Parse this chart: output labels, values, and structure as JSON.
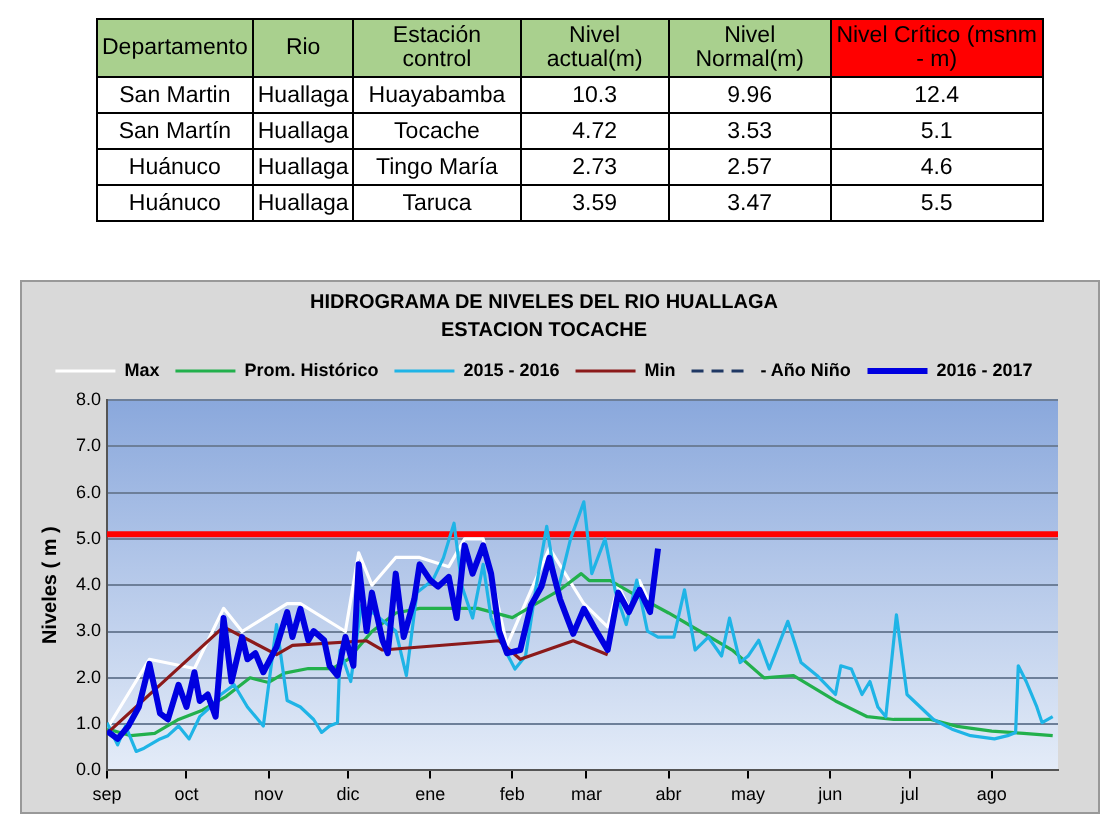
{
  "chart_data": [
    {
      "type": "other",
      "categories": [
        "Departamento",
        "Rio",
        "Estación control",
        "Nivel actual(m)",
        "Nivel Normal(m)",
        "Nivel Crítico (msnm - m)"
      ],
      "colors": [
        "#a9d08e",
        "#a9d08e",
        "#a9d08e",
        "#a9d08e",
        "#a9d08e",
        "#ff0000"
      ],
      "annotations": [
        "San Martin",
        "Huallaga",
        "Huayabamba",
        "10.3",
        "9.96",
        "12.4",
        "San Martín",
        "Huallaga",
        "Tocache",
        "4.72",
        "3.53",
        "5.1",
        "Huánuco",
        "Huallaga",
        "Tingo María",
        "2.73",
        "2.57",
        "4.6",
        "Huánuco",
        "Huallaga",
        "Taruca",
        "3.59",
        "3.47",
        "5.5"
      ]
    },
    {
      "type": "line",
      "title": "HIDROGRAMA DE NIVELES DEL RIO HUALLAGA",
      "subtitle": "ESTACION TOCACHE",
      "ylabel": "Niveles ( m )",
      "xlim": [
        "2016-09-01",
        "2017-08-26"
      ],
      "xticks": [
        {
          "value": "2016-09-01",
          "label": "sep"
        },
        {
          "value": "2016-10-01",
          "label": "oct"
        },
        {
          "value": "2016-11-01",
          "label": "nov"
        },
        {
          "value": "2016-12-01",
          "label": "dic"
        },
        {
          "value": "2017-01-01",
          "label": "ene"
        },
        {
          "value": "2017-02-01",
          "label": "feb"
        },
        {
          "value": "2017-03-01",
          "label": "mar"
        },
        {
          "value": "2017-04-01",
          "label": "abr"
        },
        {
          "value": "2017-05-01",
          "label": "may"
        },
        {
          "value": "2017-06-01",
          "label": "jun"
        },
        {
          "value": "2017-07-01",
          "label": "jul"
        },
        {
          "value": "2017-08-01",
          "label": "ago"
        }
      ],
      "ylim": [
        0,
        8
      ],
      "yticks": [
        {
          "value": 0,
          "label": "0.0"
        },
        {
          "value": 1,
          "label": "1.0"
        },
        {
          "value": 2,
          "label": "2.0"
        },
        {
          "value": 3,
          "label": "3.0"
        },
        {
          "value": 4,
          "label": "4.0"
        },
        {
          "value": 5,
          "label": "5.0"
        },
        {
          "value": 6,
          "label": "6.0"
        },
        {
          "value": 7,
          "label": "7.0"
        },
        {
          "value": 8,
          "label": "8.0"
        }
      ],
      "grid": "y",
      "legend": "top",
      "marker": "none",
      "ref_lines": [
        {
          "axis": "y",
          "value": 5.1,
          "color": "#ff0000"
        }
      ],
      "series": [
        {
          "name": "Max",
          "color": "#ffffff",
          "x": [
            "2016-09-01",
            "2016-09-17",
            "2016-10-04",
            "2016-10-15",
            "2016-10-22",
            "2016-11-08",
            "2016-11-13",
            "2016-11-30",
            "2016-12-05",
            "2016-12-10",
            "2016-12-19",
            "2016-12-28",
            "2017-01-08",
            "2017-01-14",
            "2017-01-21",
            "2017-01-30",
            "2017-02-15",
            "2017-02-28",
            "2017-03-09",
            "2017-03-13",
            "2017-03-17",
            "2017-03-21",
            "2017-03-25"
          ],
          "values": [
            0.9,
            2.4,
            2.2,
            3.5,
            3.0,
            3.6,
            3.6,
            3.0,
            4.7,
            4.0,
            4.6,
            4.6,
            4.4,
            5.0,
            5.0,
            2.7,
            4.8,
            3.6,
            3.1,
            4.0,
            3.5,
            4.1,
            3.6
          ]
        },
        {
          "name": "Prom. Histórico",
          "color": "#22b04c",
          "x": [
            "2016-09-01",
            "2016-09-10",
            "2016-09-19",
            "2016-09-28",
            "2016-10-07",
            "2016-10-16",
            "2016-10-25",
            "2016-11-01",
            "2016-11-07",
            "2016-11-16",
            "2016-11-25",
            "2016-12-01",
            "2016-12-10",
            "2016-12-19",
            "2016-12-28",
            "2017-01-07",
            "2017-01-19",
            "2017-02-01",
            "2017-02-10",
            "2017-02-19",
            "2017-02-27",
            "2017-03-02",
            "2017-03-10",
            "2017-03-19",
            "2017-04-01",
            "2017-04-13",
            "2017-04-25",
            "2017-05-07",
            "2017-05-18",
            "2017-06-03",
            "2017-06-15",
            "2017-06-25",
            "2017-07-09",
            "2017-07-19",
            "2017-08-01",
            "2017-08-13",
            "2017-08-24"
          ],
          "values": [
            0.9,
            0.75,
            0.8,
            1.1,
            1.3,
            1.6,
            2.0,
            1.9,
            2.1,
            2.2,
            2.2,
            2.4,
            3.0,
            3.4,
            3.5,
            3.5,
            3.5,
            3.3,
            3.6,
            3.9,
            4.25,
            4.1,
            4.1,
            3.8,
            3.4,
            3.0,
            2.6,
            2.0,
            2.05,
            1.5,
            1.16,
            1.1,
            1.1,
            0.95,
            0.85,
            0.8,
            0.75
          ]
        },
        {
          "name": "2015 - 2016",
          "color": "#1fb4e6",
          "x": [
            "2016-09-01",
            "2016-09-05",
            "2016-09-08",
            "2016-09-12",
            "2016-09-15",
            "2016-09-21",
            "2016-09-24",
            "2016-09-28",
            "2016-10-02",
            "2016-10-06",
            "2016-10-10",
            "2016-10-14",
            "2016-10-19",
            "2016-10-24",
            "2016-10-30",
            "2016-11-04",
            "2016-11-08",
            "2016-11-13",
            "2016-11-18",
            "2016-11-21",
            "2016-11-24",
            "2016-11-27",
            "2016-11-28",
            "2016-12-02",
            "2016-12-06",
            "2016-12-10",
            "2016-12-15",
            "2016-12-19",
            "2016-12-23",
            "2016-12-27",
            "2017-01-02",
            "2017-01-06",
            "2017-01-10",
            "2017-01-13",
            "2017-01-17",
            "2017-01-21",
            "2017-01-24",
            "2017-01-28",
            "2017-02-02",
            "2017-02-06",
            "2017-02-10",
            "2017-02-14",
            "2017-02-18",
            "2017-02-23",
            "2017-02-28",
            "2017-03-03",
            "2017-03-08",
            "2017-03-12",
            "2017-03-16",
            "2017-03-20",
            "2017-03-24",
            "2017-03-28",
            "2017-04-03",
            "2017-04-07",
            "2017-04-11",
            "2017-04-16",
            "2017-04-21",
            "2017-04-24",
            "2017-04-28",
            "2017-05-01",
            "2017-05-05",
            "2017-05-09",
            "2017-05-16",
            "2017-05-21",
            "2017-05-27",
            "2017-06-03",
            "2017-06-05",
            "2017-06-09",
            "2017-06-13",
            "2017-06-16",
            "2017-06-19",
            "2017-06-22",
            "2017-06-26",
            "2017-06-30",
            "2017-07-05",
            "2017-07-10",
            "2017-07-17",
            "2017-07-24",
            "2017-08-02",
            "2017-08-07",
            "2017-08-10",
            "2017-08-11",
            "2017-08-14",
            "2017-08-18",
            "2017-08-20",
            "2017-08-24"
          ],
          "values": [
            1.03,
            0.55,
            0.96,
            0.41,
            0.48,
            0.68,
            0.75,
            0.96,
            0.68,
            1.16,
            1.37,
            1.64,
            1.85,
            1.37,
            0.96,
            3.15,
            1.51,
            1.37,
            1.1,
            0.82,
            0.96,
            1.03,
            2.6,
            1.92,
            3.56,
            3.42,
            null,
            3.01,
            2.05,
            3.84,
            4.11,
            4.59,
            5.34,
            3.97,
            3.29,
            4.45,
            3.29,
            2.74,
            2.19,
            2.47,
            3.97,
            5.27,
            3.84,
            5.0,
            5.8,
            4.25,
            5.0,
            3.84,
            3.15,
            4.11,
            3.01,
            2.88,
            2.88,
            3.9,
            2.6,
            2.88,
            2.47,
            3.29,
            2.33,
            2.47,
            2.81,
            2.19,
            3.22,
            2.33,
            2.05,
            1.64,
            2.26,
            2.19,
            1.64,
            1.92,
            1.37,
            1.16,
            3.36,
            1.64,
            1.37,
            1.1,
            0.89,
            0.75,
            0.68,
            0.75,
            0.82,
            2.26,
            1.92,
            1.37,
            1.03,
            1.16
          ]
        },
        {
          "name": "Min",
          "color": "#8b1a1a",
          "x": [
            "2016-09-01",
            "2016-10-15",
            "2016-11-04",
            "2016-11-10",
            "2016-12-08",
            "2016-12-14",
            "2017-01-27",
            "2017-02-04",
            "2017-02-24",
            "2017-03-09"
          ],
          "values": [
            0.8,
            3.1,
            2.5,
            2.7,
            2.8,
            2.6,
            2.8,
            2.4,
            2.8,
            2.5
          ]
        },
        {
          "name": "- Año Niño",
          "color": "#1f3864",
          "line_style": "dashed"
        },
        {
          "name": "2016 - 2017",
          "color": "#0000e0",
          "x": [
            "2016-09-01",
            "2016-09-05",
            "2016-09-09",
            "2016-09-13",
            "2016-09-17",
            "2016-09-21",
            "2016-09-24",
            "2016-09-28",
            "2016-10-01",
            "2016-10-04",
            "2016-10-06",
            "2016-10-09",
            "2016-10-12",
            "2016-10-15",
            "2016-10-18",
            "2016-10-22",
            "2016-10-24",
            "2016-10-27",
            "2016-10-30",
            "2016-11-04",
            "2016-11-08",
            "2016-11-10",
            "2016-11-13",
            "2016-11-16",
            "2016-11-18",
            "2016-11-22",
            "2016-11-24",
            "2016-11-27",
            "2016-11-30",
            "2016-12-03",
            "2016-12-05",
            "2016-12-08",
            "2016-12-10",
            "2016-12-14",
            "2016-12-16",
            "2016-12-19",
            "2016-12-22",
            "2016-12-26",
            "2016-12-28",
            "2017-01-01",
            "2017-01-04",
            "2017-01-08",
            "2017-01-11",
            "2017-01-14",
            "2017-01-17",
            "2017-01-21",
            "2017-01-24",
            "2017-01-27",
            "2017-01-30",
            "2017-02-04",
            "2017-02-08",
            "2017-02-12",
            "2017-02-15",
            "2017-02-19",
            "2017-02-24",
            "2017-02-28",
            "2017-03-04",
            "2017-03-09",
            "2017-03-13",
            "2017-03-17",
            "2017-03-21",
            "2017-03-25",
            "2017-03-28"
          ],
          "values": [
            0.85,
            0.68,
            0.95,
            1.37,
            2.3,
            1.23,
            1.1,
            1.85,
            1.37,
            2.12,
            1.5,
            1.64,
            1.16,
            3.29,
            1.92,
            2.88,
            2.4,
            2.53,
            2.12,
            2.67,
            3.42,
            2.88,
            3.49,
            2.81,
            3.01,
            2.81,
            2.26,
            2.05,
            2.88,
            2.26,
            4.45,
            3.01,
            3.84,
            2.81,
            2.53,
            4.25,
            2.88,
            3.7,
            4.45,
            4.11,
            3.97,
            4.18,
            3.29,
            4.86,
            4.25,
            4.86,
            4.25,
            3.01,
            2.53,
            2.6,
            3.56,
            3.97,
            4.59,
            3.7,
            2.95,
            3.49,
            3.08,
            2.6,
            3.84,
            3.42,
            3.9,
            3.42,
            4.79
          ]
        }
      ]
    }
  ]
}
